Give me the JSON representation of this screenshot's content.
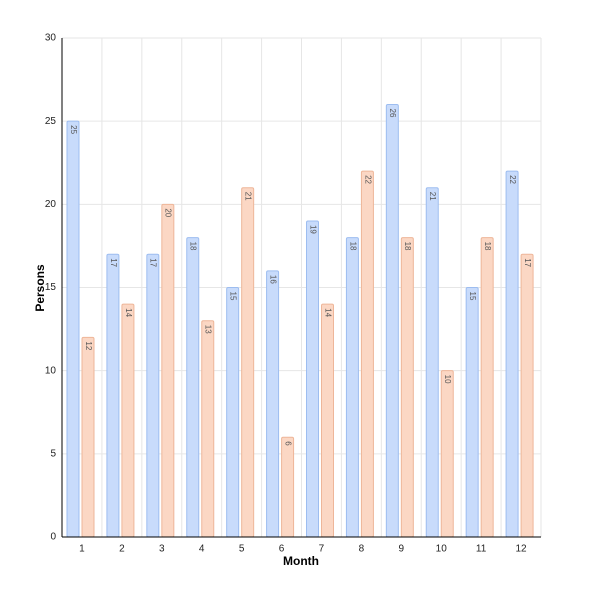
{
  "chart_data": {
    "type": "bar",
    "x_label": "Month",
    "y_label": "Persons",
    "categories": [
      "1",
      "2",
      "3",
      "4",
      "5",
      "6",
      "7",
      "8",
      "9",
      "10",
      "11",
      "12"
    ],
    "series": [
      {
        "color": "#c8dbfb",
        "values": [
          25,
          17,
          17,
          18,
          15,
          16,
          19,
          18,
          26,
          21,
          15,
          22
        ]
      },
      {
        "color": "#fbd7c4",
        "values": [
          12,
          14,
          20,
          13,
          21,
          6,
          14,
          22,
          18,
          10,
          18,
          17
        ]
      }
    ],
    "ylim": [
      0,
      30
    ],
    "yticks": [
      0,
      5,
      10,
      15,
      20,
      25,
      30
    ],
    "grid": true
  }
}
